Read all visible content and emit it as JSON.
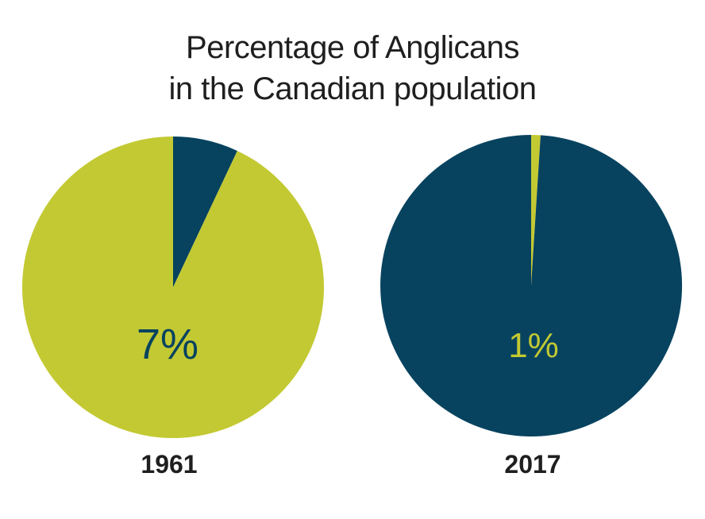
{
  "title_line_1": "Percentage of Anglicans",
  "title_line_2": "in the Canadian population",
  "colors": {
    "anglican_1961": "#07435f",
    "rest_1961": "#c3c932",
    "anglican_2017": "#c3c932",
    "rest_2017": "#07435f",
    "title": "#1f1f1f",
    "year_label": "#1f1f1f"
  },
  "chart_data": [
    {
      "type": "pie",
      "year": "1961",
      "label": "7%",
      "slices": [
        {
          "value": 7
        },
        {
          "value": 93
        }
      ]
    },
    {
      "type": "pie",
      "year": "2017",
      "label": "1%",
      "slices": [
        {
          "value": 1
        },
        {
          "value": 99
        }
      ]
    }
  ]
}
